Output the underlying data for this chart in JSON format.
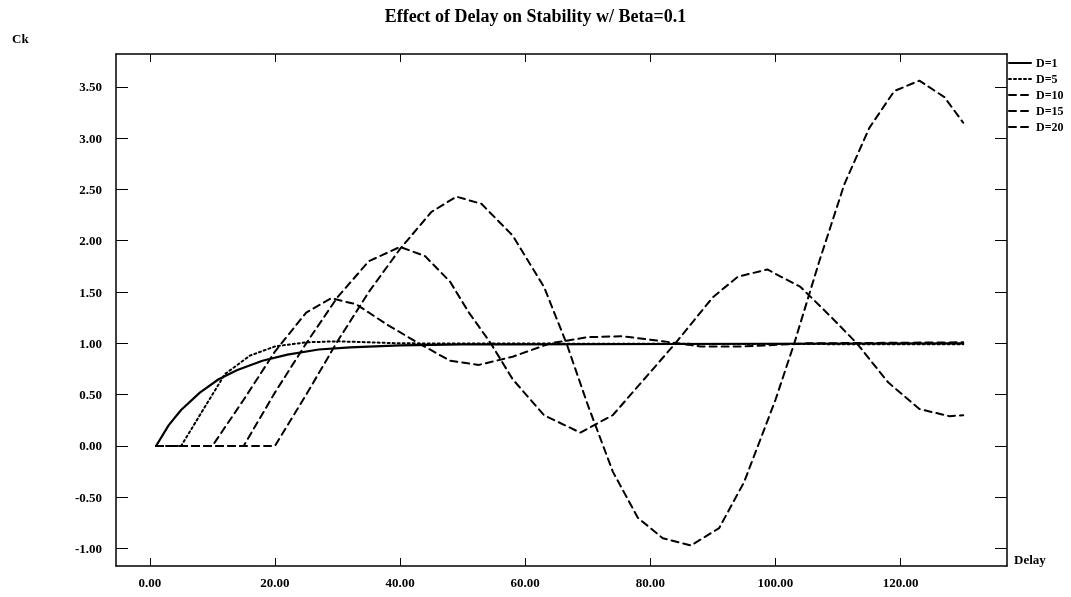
{
  "chart_data": {
    "type": "line",
    "title": "Effect of Delay on Stability w/ Beta=0.1",
    "xlabel": "Delay",
    "ylabel": "Ck",
    "series": [
      {
        "name": "D=1",
        "color": "#000000",
        "line_style": "solid",
        "x": [
          1,
          3,
          5,
          8,
          11,
          14,
          18,
          22,
          27,
          32,
          40,
          50,
          130
        ],
        "values": [
          0,
          0.2,
          0.35,
          0.52,
          0.65,
          0.74,
          0.83,
          0.89,
          0.94,
          0.96,
          0.98,
          0.99,
          1.0
        ]
      },
      {
        "name": "D=5",
        "color": "#000000",
        "line_style": "dotted",
        "x": [
          1,
          5,
          12,
          16,
          20,
          25,
          30,
          40,
          130
        ],
        "values": [
          0,
          0,
          0.7,
          0.88,
          0.97,
          1.01,
          1.02,
          1.0,
          0.99
        ]
      },
      {
        "name": "D=10",
        "color": "#000000",
        "line_style": "dashed",
        "x": [
          1,
          10,
          15,
          20,
          25,
          29,
          33,
          38,
          43,
          48,
          52.6,
          58,
          64,
          70,
          75.4,
          82,
          88,
          95,
          105,
          130
        ],
        "values": [
          0,
          0,
          0.45,
          0.92,
          1.3,
          1.44,
          1.38,
          1.18,
          1.0,
          0.83,
          0.79,
          0.87,
          1.0,
          1.06,
          1.07,
          1.02,
          0.97,
          0.97,
          1.0,
          1.01
        ]
      },
      {
        "name": "D=15",
        "color": "#000000",
        "line_style": "dashed",
        "x": [
          1,
          15,
          20,
          25,
          30,
          35,
          40,
          44,
          48,
          51,
          54.5,
          58,
          63,
          68.8,
          74,
          79,
          84,
          90,
          94,
          98.7,
          104,
          109,
          113,
          118,
          123,
          127.8,
          130
        ],
        "values": [
          0,
          0,
          0.52,
          1.0,
          1.45,
          1.8,
          1.94,
          1.85,
          1.6,
          1.3,
          1.0,
          0.65,
          0.3,
          0.13,
          0.3,
          0.65,
          1.0,
          1.45,
          1.65,
          1.72,
          1.55,
          1.25,
          1.0,
          0.62,
          0.36,
          0.29,
          0.3
        ]
      },
      {
        "name": "D=20",
        "color": "#000000",
        "line_style": "dashed",
        "x": [
          1,
          20,
          25,
          30,
          35,
          40,
          45,
          49,
          53,
          58,
          63,
          66.6,
          70,
          74,
          78,
          82,
          86.5,
          91,
          95,
          100,
          103,
          107,
          111,
          115,
          119,
          123,
          127,
          130
        ],
        "values": [
          0,
          0,
          0.5,
          1.02,
          1.5,
          1.92,
          2.28,
          2.43,
          2.36,
          2.05,
          1.55,
          1.0,
          0.4,
          -0.25,
          -0.7,
          -0.9,
          -0.97,
          -0.8,
          -0.35,
          0.45,
          1.0,
          1.8,
          2.55,
          3.1,
          3.46,
          3.56,
          3.4,
          3.15
        ]
      }
    ],
    "xlim": [
      -5.4,
      137
    ],
    "xticks": [
      {
        "value": 0,
        "label": "0.00"
      },
      {
        "value": 20,
        "label": "20.00"
      },
      {
        "value": 40,
        "label": "40.00"
      },
      {
        "value": 60,
        "label": "60.00"
      },
      {
        "value": 80,
        "label": "80.00"
      },
      {
        "value": 100,
        "label": "100.00"
      },
      {
        "value": 120,
        "label": "120.00"
      }
    ],
    "ylim": [
      -1.17,
      3.82
    ],
    "yticks": [
      {
        "value": -1,
        "label": "-1.00"
      },
      {
        "value": -0.5,
        "label": "-0.50"
      },
      {
        "value": 0,
        "label": "0.00"
      },
      {
        "value": 0.5,
        "label": "0.50"
      },
      {
        "value": 1,
        "label": "1.00"
      },
      {
        "value": 1.5,
        "label": "1.50"
      },
      {
        "value": 2,
        "label": "2.00"
      },
      {
        "value": 2.5,
        "label": "2.50"
      },
      {
        "value": 3,
        "label": "3.00"
      },
      {
        "value": 3.5,
        "label": "3.50"
      }
    ],
    "grid": false,
    "legend": "top right",
    "marker": "none"
  }
}
